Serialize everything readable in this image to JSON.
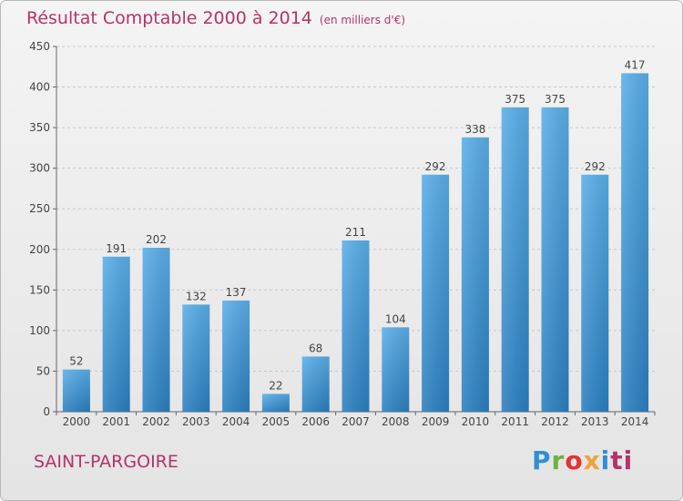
{
  "title": "Résultat Comptable 2000 à 2014",
  "unit": "(en milliers d'€)",
  "town": "SAINT-PARGOIRE",
  "logo": {
    "p": "P",
    "r": "r",
    "o": "o",
    "x": "x",
    "i": "i",
    "t": "ti"
  },
  "colors": {
    "accent": "#b5336a",
    "bar_top": "#5aaee8",
    "bar_bottom": "#2a7fc0"
  },
  "chart_data": {
    "type": "bar",
    "title": "Résultat Comptable 2000 à 2014",
    "xlabel": "",
    "ylabel": "",
    "categories": [
      "2000",
      "2001",
      "2002",
      "2003",
      "2004",
      "2005",
      "2006",
      "2007",
      "2008",
      "2009",
      "2010",
      "2011",
      "2012",
      "2013",
      "2014"
    ],
    "values": [
      52,
      191,
      202,
      132,
      137,
      22,
      68,
      211,
      104,
      292,
      338,
      375,
      375,
      292,
      417
    ],
    "ylim": [
      0,
      450
    ],
    "yticks": [
      0,
      50,
      100,
      150,
      200,
      250,
      300,
      350,
      400,
      450
    ],
    "grid": true,
    "legend": "none"
  }
}
